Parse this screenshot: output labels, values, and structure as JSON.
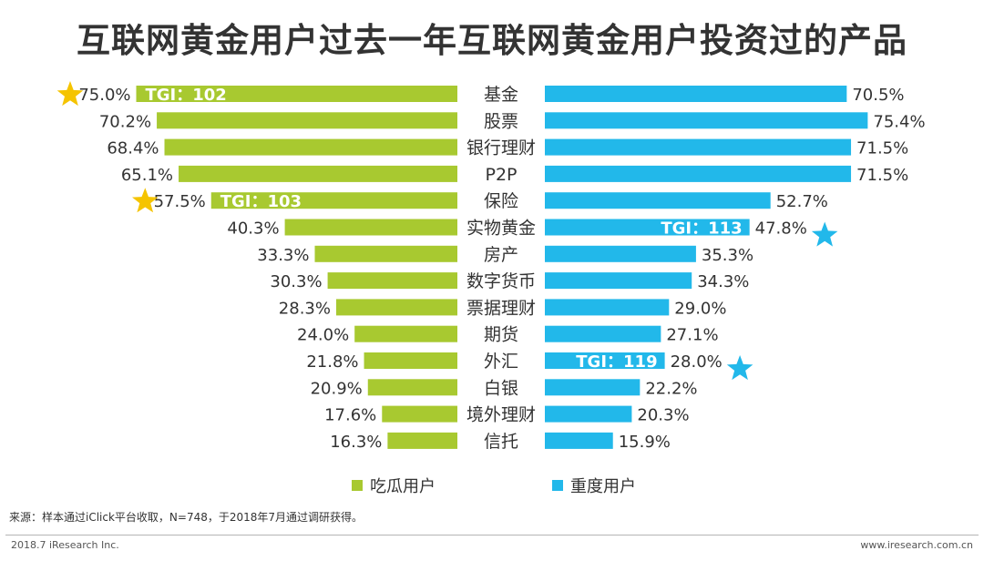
{
  "title": "互联网黄金用户过去一年互联网黄金用户投资过的产品",
  "chart_data": {
    "type": "bar",
    "title": "互联网黄金用户过去一年互联网黄金用户投资过的产品",
    "categories": [
      "基金",
      "股票",
      "银行理财",
      "P2P",
      "保险",
      "实物黄金",
      "房产",
      "数字货币",
      "票据理财",
      "期货",
      "外汇",
      "白银",
      "境外理财",
      "信托"
    ],
    "series": [
      {
        "name": "吃瓜用户",
        "color": "#a8c930",
        "values": [
          75.0,
          70.2,
          68.4,
          65.1,
          57.5,
          40.3,
          33.3,
          30.3,
          28.3,
          24.0,
          21.8,
          20.9,
          17.6,
          16.3
        ]
      },
      {
        "name": "重度用户",
        "color": "#22b8ea",
        "values": [
          70.5,
          75.4,
          71.5,
          71.5,
          52.7,
          47.8,
          35.3,
          34.3,
          29.0,
          27.1,
          28.0,
          22.2,
          20.3,
          15.9
        ]
      }
    ],
    "value_labels": {
      "left": [
        "75.0%",
        "70.2%",
        "68.4%",
        "65.1%",
        "57.5%",
        "40.3%",
        "33.3%",
        "30.3%",
        "28.3%",
        "24.0%",
        "21.8%",
        "20.9%",
        "17.6%",
        "16.3%"
      ],
      "right": [
        "70.5%",
        "75.4%",
        "71.5%",
        "71.5%",
        "52.7%",
        "47.8%",
        "35.3%",
        "34.3%",
        "29.0%",
        "27.1%",
        "28.0%",
        "22.2%",
        "20.3%",
        "15.9%"
      ]
    },
    "annotations": [
      {
        "series": "吃瓜用户",
        "category": "基金",
        "text": "TGI：102",
        "star_color": "#f5c400"
      },
      {
        "series": "吃瓜用户",
        "category": "保险",
        "text": "TGI：103",
        "star_color": "#f5c400"
      },
      {
        "series": "重度用户",
        "category": "实物黄金",
        "text": "TGI：113",
        "star_color": "#22b8ea"
      },
      {
        "series": "重度用户",
        "category": "外汇",
        "text": "TGI：119",
        "star_color": "#22b8ea"
      }
    ],
    "legend_position": "bottom"
  },
  "legend": [
    {
      "label": "吃瓜用户",
      "color": "#a8c930"
    },
    {
      "label": "重度用户",
      "color": "#22b8ea"
    }
  ],
  "source": "来源：样本通过iClick平台收取，N=748，于2018年7月通过调研获得。",
  "footer_left": "2018.7 iResearch Inc.",
  "footer_right": "www.iresearch.com.cn"
}
